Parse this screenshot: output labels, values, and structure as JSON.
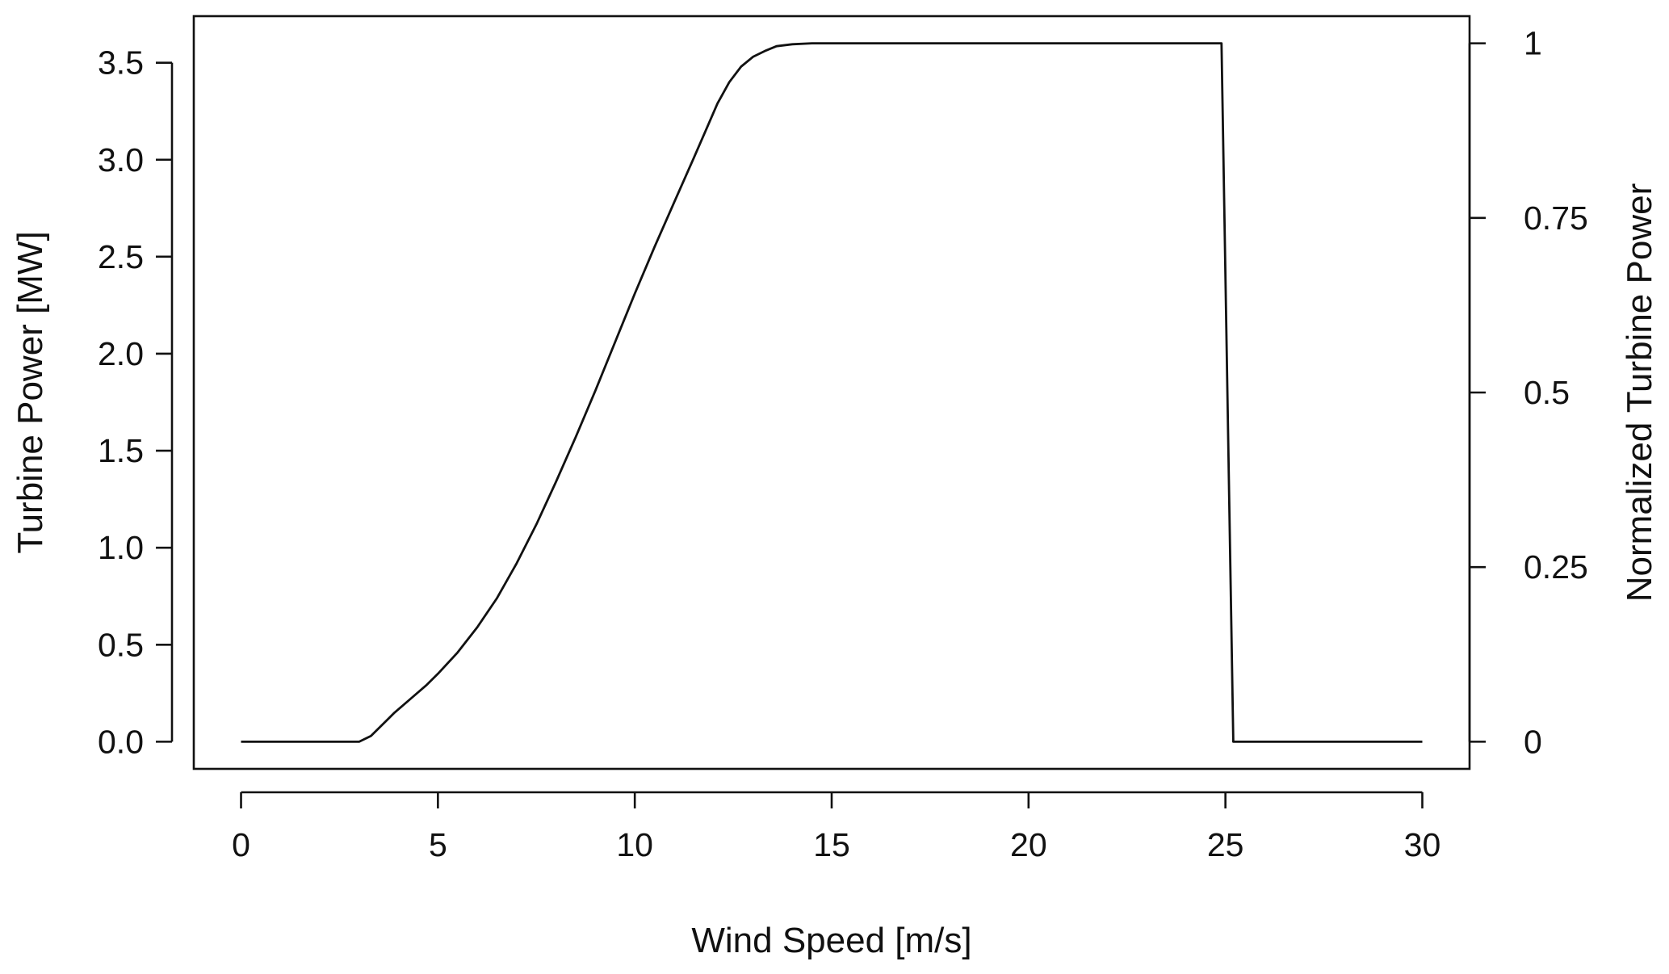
{
  "chart_data": {
    "type": "line",
    "title": "",
    "xlabel": "Wind Speed [m/s]",
    "ylabel": "Turbine Power [MW]",
    "y2label": "Normalized Turbine Power",
    "xlim": [
      -1.2,
      31.2
    ],
    "ylim": [
      -0.14,
      3.74
    ],
    "y2lim": [
      -0.038889,
      1.038889
    ],
    "x_ticks": [
      0,
      5,
      10,
      15,
      20,
      25,
      30
    ],
    "x_tick_labels": [
      "0",
      "5",
      "10",
      "15",
      "20",
      "25",
      "30"
    ],
    "y_ticks": [
      0,
      0.5,
      1,
      1.5,
      2,
      2.5,
      3,
      3.5
    ],
    "y_tick_labels": [
      "0.0",
      "0.5",
      "1.0",
      "1.5",
      "2.0",
      "2.5",
      "3.0",
      "3.5"
    ],
    "y2_ticks": [
      0,
      0.25,
      0.5,
      0.75,
      1
    ],
    "y2_tick_labels": [
      "0",
      "0.25",
      "0.5",
      "0.75",
      "1"
    ],
    "grid": false,
    "legend": "none",
    "series": [
      {
        "x": [
          0,
          3,
          3.3,
          3.6,
          3.9,
          4.3,
          4.7,
          5.0,
          5.5,
          6.0,
          6.5,
          7.0,
          7.5,
          8.0,
          8.5,
          9.0,
          9.5,
          10.0,
          10.5,
          11.0,
          11.5,
          11.8,
          12.1,
          12.4,
          12.7,
          13.0,
          13.3,
          13.6,
          14.0,
          14.5,
          15.0,
          20.0,
          24.9,
          25.2,
          30.0
        ],
        "y": [
          0,
          0,
          0.03,
          0.09,
          0.15,
          0.22,
          0.29,
          0.35,
          0.46,
          0.59,
          0.74,
          0.92,
          1.12,
          1.34,
          1.57,
          1.81,
          2.06,
          2.31,
          2.55,
          2.78,
          3.01,
          3.15,
          3.29,
          3.4,
          3.48,
          3.53,
          3.56,
          3.585,
          3.595,
          3.6,
          3.6,
          3.6,
          3.6,
          0,
          0
        ]
      }
    ]
  }
}
